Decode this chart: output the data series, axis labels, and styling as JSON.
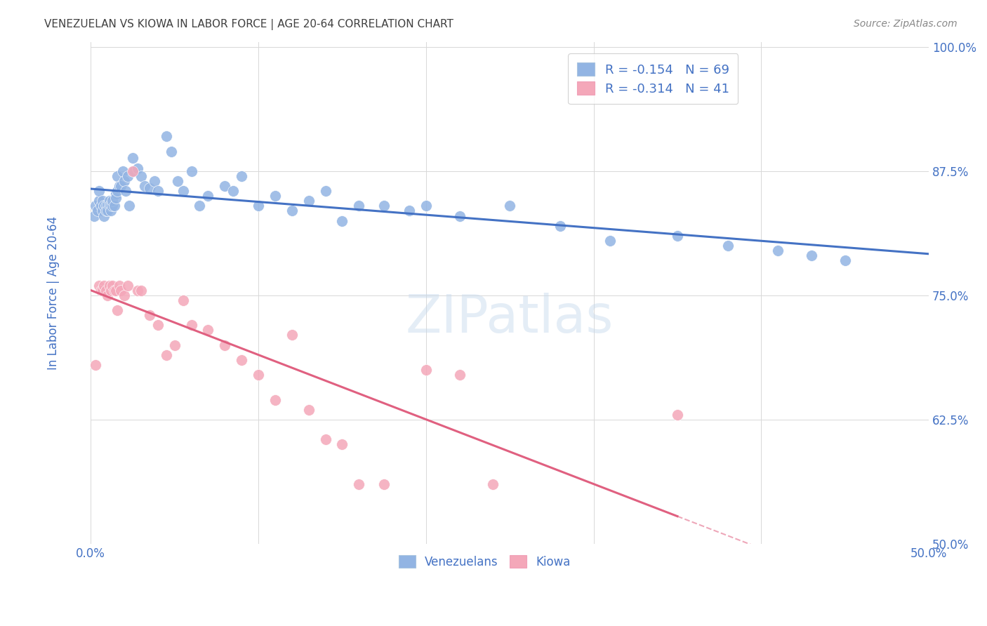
{
  "title": "VENEZUELAN VS KIOWA IN LABOR FORCE | AGE 20-64 CORRELATION CHART",
  "source": "Source: ZipAtlas.com",
  "ylabel": "In Labor Force | Age 20-64",
  "xlim": [
    0.0,
    0.5
  ],
  "ylim": [
    0.5,
    1.005
  ],
  "yticks": [
    0.5,
    0.625,
    0.75,
    0.875,
    1.0
  ],
  "ytick_labels": [
    "50.0%",
    "62.5%",
    "75.0%",
    "87.5%",
    "100.0%"
  ],
  "xticks": [
    0.0,
    0.1,
    0.2,
    0.3,
    0.4,
    0.5
  ],
  "xtick_labels": [
    "0.0%",
    "",
    "",
    "",
    "",
    "50.0%"
  ],
  "blue_color": "#92b4e3",
  "pink_color": "#f4a7b9",
  "blue_line_color": "#4472c4",
  "pink_line_color": "#e06080",
  "title_color": "#404040",
  "axis_label_color": "#4472c4",
  "tick_color": "#4472c4",
  "legend_n_color": "#4472c4",
  "venezuelan_R": -0.154,
  "venezuelan_N": 69,
  "kiowa_R": -0.314,
  "kiowa_N": 41,
  "blue_x": [
    0.002,
    0.003,
    0.004,
    0.005,
    0.005,
    0.006,
    0.007,
    0.007,
    0.008,
    0.008,
    0.009,
    0.009,
    0.01,
    0.01,
    0.011,
    0.011,
    0.012,
    0.012,
    0.013,
    0.013,
    0.014,
    0.015,
    0.015,
    0.016,
    0.016,
    0.017,
    0.018,
    0.019,
    0.02,
    0.021,
    0.022,
    0.023,
    0.025,
    0.026,
    0.028,
    0.03,
    0.032,
    0.035,
    0.038,
    0.04,
    0.045,
    0.048,
    0.052,
    0.055,
    0.06,
    0.065,
    0.07,
    0.08,
    0.085,
    0.09,
    0.1,
    0.11,
    0.12,
    0.13,
    0.14,
    0.15,
    0.16,
    0.175,
    0.19,
    0.2,
    0.22,
    0.25,
    0.28,
    0.31,
    0.35,
    0.38,
    0.41,
    0.43,
    0.45
  ],
  "blue_y": [
    0.83,
    0.84,
    0.835,
    0.845,
    0.855,
    0.84,
    0.835,
    0.845,
    0.84,
    0.83,
    0.84,
    0.835,
    0.84,
    0.835,
    0.845,
    0.84,
    0.84,
    0.835,
    0.84,
    0.845,
    0.84,
    0.852,
    0.848,
    0.855,
    0.87,
    0.86,
    0.86,
    0.875,
    0.865,
    0.855,
    0.87,
    0.84,
    0.888,
    0.875,
    0.878,
    0.87,
    0.86,
    0.858,
    0.865,
    0.855,
    0.91,
    0.895,
    0.865,
    0.855,
    0.875,
    0.84,
    0.85,
    0.86,
    0.855,
    0.87,
    0.84,
    0.85,
    0.835,
    0.845,
    0.855,
    0.825,
    0.84,
    0.84,
    0.835,
    0.84,
    0.83,
    0.84,
    0.82,
    0.805,
    0.81,
    0.8,
    0.795,
    0.79,
    0.785
  ],
  "pink_x": [
    0.003,
    0.005,
    0.006,
    0.007,
    0.008,
    0.009,
    0.01,
    0.011,
    0.012,
    0.013,
    0.014,
    0.015,
    0.016,
    0.017,
    0.018,
    0.02,
    0.022,
    0.025,
    0.028,
    0.03,
    0.035,
    0.04,
    0.045,
    0.05,
    0.055,
    0.06,
    0.07,
    0.08,
    0.09,
    0.1,
    0.11,
    0.12,
    0.13,
    0.14,
    0.15,
    0.16,
    0.175,
    0.2,
    0.22,
    0.24,
    0.35
  ],
  "pink_y": [
    0.68,
    0.76,
    0.755,
    0.755,
    0.76,
    0.755,
    0.75,
    0.76,
    0.755,
    0.76,
    0.755,
    0.755,
    0.735,
    0.76,
    0.755,
    0.75,
    0.76,
    0.875,
    0.755,
    0.755,
    0.73,
    0.72,
    0.69,
    0.7,
    0.745,
    0.72,
    0.715,
    0.7,
    0.685,
    0.67,
    0.645,
    0.71,
    0.635,
    0.605,
    0.6,
    0.56,
    0.56,
    0.675,
    0.67,
    0.56,
    0.63
  ],
  "background_color": "#ffffff",
  "grid_color": "#d8d8d8"
}
